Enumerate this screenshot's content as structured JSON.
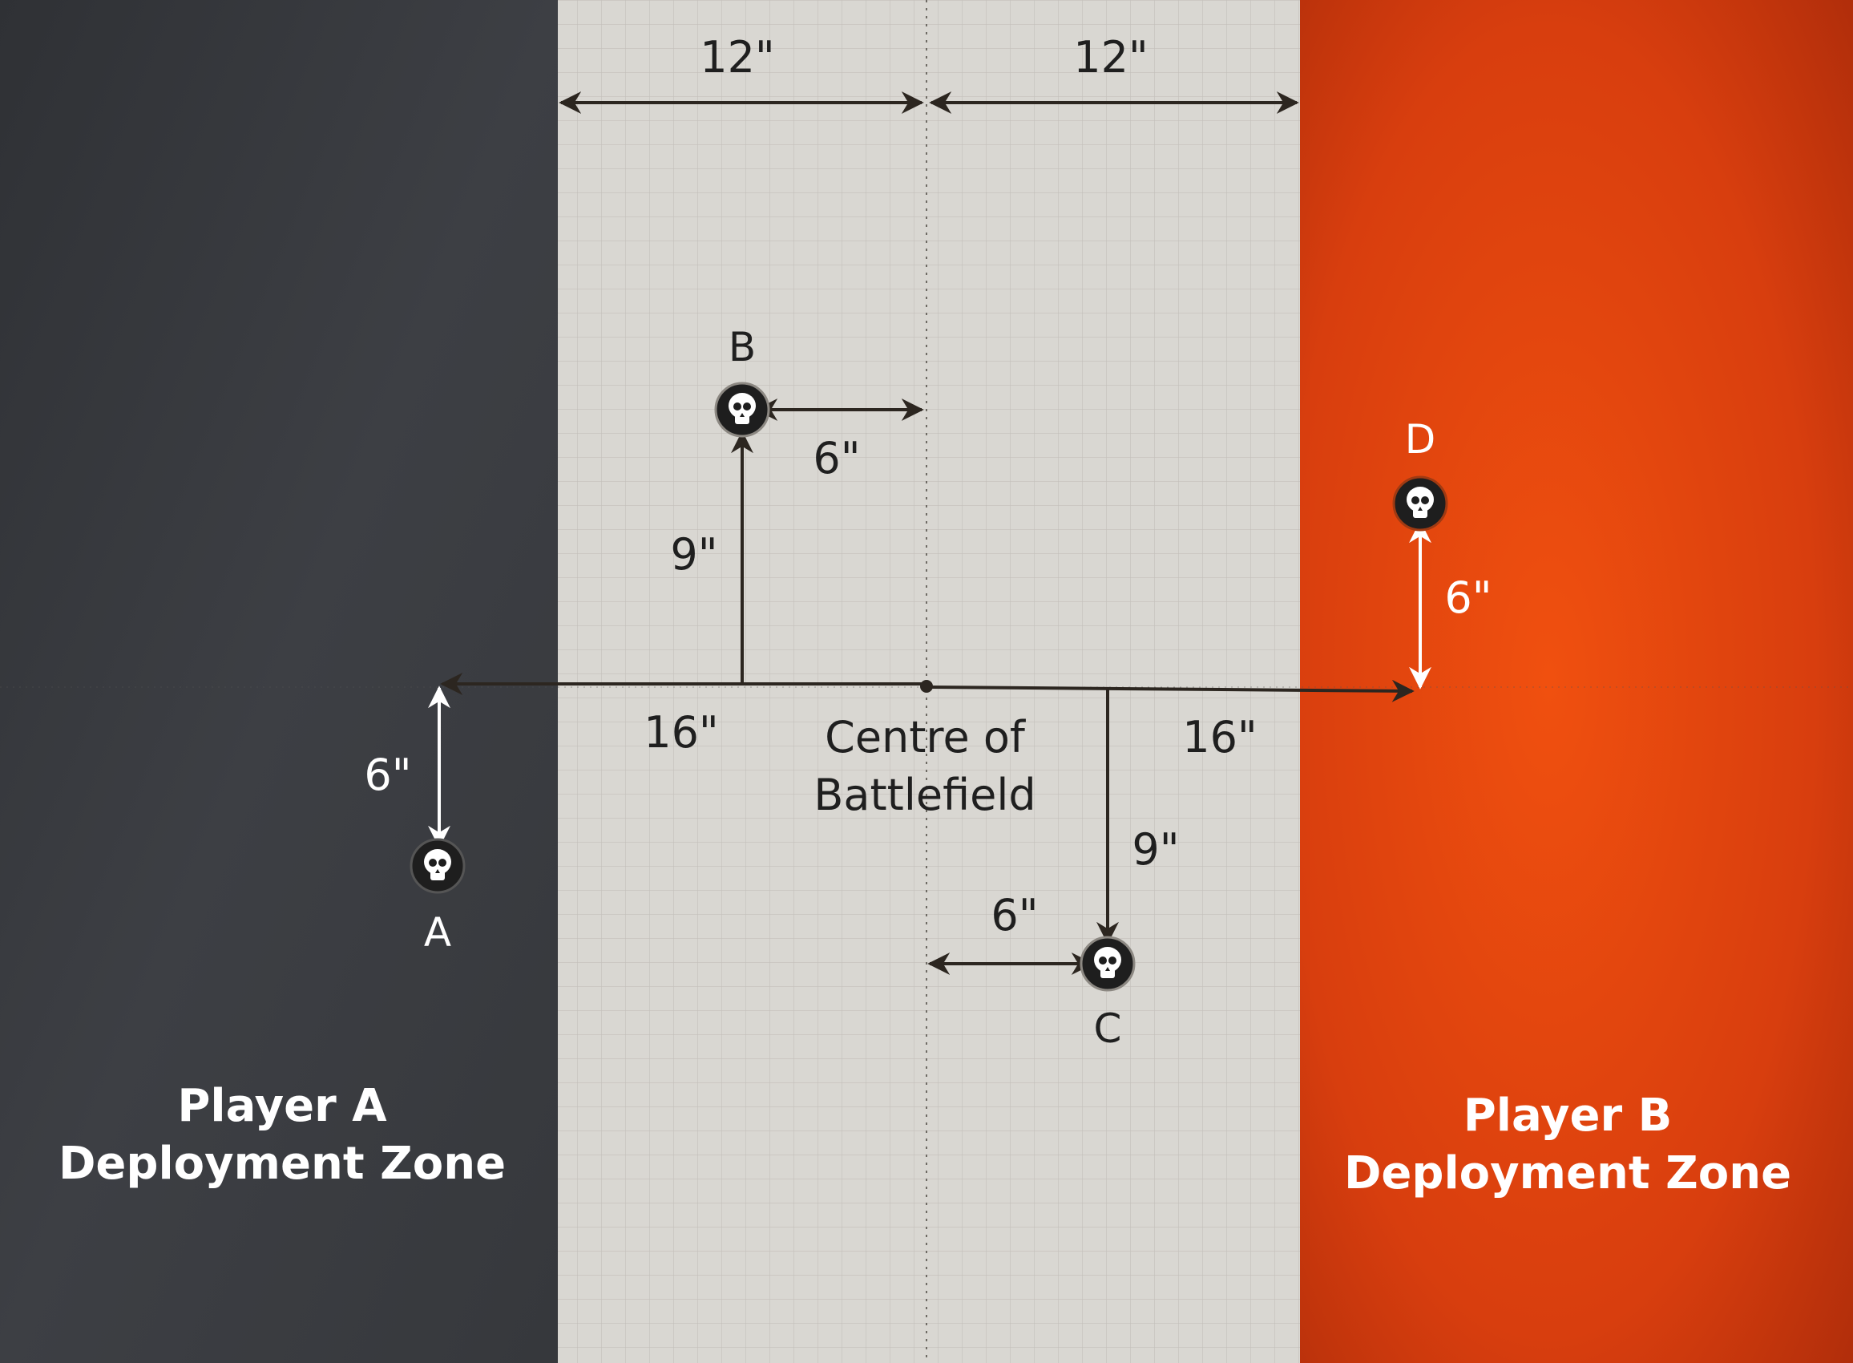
{
  "colors": {
    "zone_a": "#3b3d42",
    "zone_b": "#d83e0e",
    "no_mans_land": "#d9d7d2",
    "grid_line": "#b9b6b0",
    "arrow_dark": "#2c2620",
    "arrow_light": "#ffffff",
    "text_dark": "#1f1f1f",
    "text_light": "#ffffff",
    "marker_fill": "#1e1e1e"
  },
  "zones": {
    "player_a": {
      "line1": "Player A",
      "line2": "Deployment Zone"
    },
    "player_b": {
      "line1": "Player B",
      "line2": "Deployment Zone"
    }
  },
  "centre": {
    "line1": "Centre of",
    "line2": "Battlefield"
  },
  "measurements": {
    "top_left": "12\"",
    "top_right": "12\"",
    "left_horizontal": "16\"",
    "right_horizontal": "16\"",
    "b_vertical": "9\"",
    "b_horizontal": "6\"",
    "c_vertical": "9\"",
    "c_horizontal": "6\"",
    "a_vertical": "6\"",
    "d_vertical": "6\""
  },
  "objectives": [
    {
      "label": "A",
      "icon": "skull-icon"
    },
    {
      "label": "B",
      "icon": "skull-icon"
    },
    {
      "label": "C",
      "icon": "skull-icon"
    },
    {
      "label": "D",
      "icon": "skull-icon"
    }
  ]
}
